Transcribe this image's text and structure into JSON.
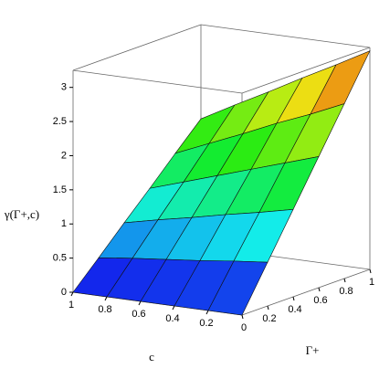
{
  "chart_data": {
    "type": "surface",
    "xlabel": "Γ+",
    "ylabel": "c",
    "zlabel": "γ(Γ+,c)",
    "x": [
      0,
      0.2,
      0.4,
      0.6,
      0.8,
      1
    ],
    "y": [
      1,
      0.8,
      0.6,
      0.4,
      0.2,
      0
    ],
    "z": [
      [
        0,
        0.37,
        0.75,
        1.12,
        1.5,
        1.87
      ],
      [
        0,
        0.43,
        0.86,
        1.28,
        1.71,
        2.14
      ],
      [
        0,
        0.48,
        0.96,
        1.44,
        1.92,
        2.4
      ],
      [
        0,
        0.53,
        1.07,
        1.6,
        2.14,
        2.67
      ],
      [
        0,
        0.59,
        1.17,
        1.76,
        2.34,
        2.93
      ],
      [
        0,
        0.64,
        1.28,
        1.92,
        2.56,
        3.2
      ]
    ],
    "xlim": [
      0,
      1
    ],
    "ylim": [
      0,
      1
    ],
    "zlim": [
      0,
      3.25
    ],
    "xticks": [
      0,
      0.2,
      0.4,
      0.6,
      0.8,
      1
    ],
    "yticks": [
      1,
      0.8,
      0.6,
      0.4,
      0.2
    ],
    "zticks": [
      0,
      0.5,
      1,
      1.5,
      2,
      2.5,
      3
    ]
  }
}
